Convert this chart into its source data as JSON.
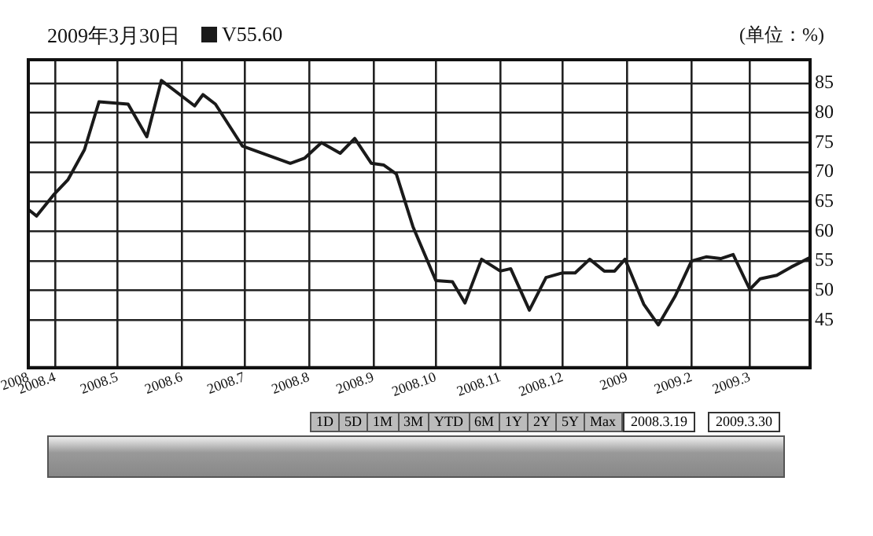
{
  "chart_data": {
    "type": "line",
    "title": "2009年3月30日",
    "ylabel": "(单位：%)",
    "legend": "top left",
    "grid": true,
    "marker": "none",
    "line_style": "solid",
    "x": [
      "2008-03-19",
      "2008-03-23",
      "2008-03-31",
      "2008-04-07",
      "2008-04-15",
      "2008-04-22",
      "2008-05-06",
      "2008-05-15",
      "2008-05-22",
      "2008-06-07",
      "2008-06-11",
      "2008-06-17",
      "2008-06-30",
      "2008-07-23",
      "2008-07-30",
      "2008-08-07",
      "2008-08-16",
      "2008-08-23",
      "2008-08-31",
      "2008-09-06",
      "2008-09-12",
      "2008-09-20",
      "2008-10-01",
      "2008-10-09",
      "2008-10-15",
      "2008-10-23",
      "2008-11-01",
      "2008-11-06",
      "2008-11-15",
      "2008-11-23",
      "2008-12-01",
      "2008-12-07",
      "2008-12-14",
      "2008-12-21",
      "2008-12-26",
      "2008-12-31",
      "2009-01-09",
      "2009-01-16",
      "2009-01-24",
      "2009-02-01",
      "2009-02-08",
      "2009-02-15",
      "2009-02-21",
      "2009-03-01",
      "2009-03-06",
      "2009-03-14",
      "2009-03-21",
      "2009-03-30"
    ],
    "series": [
      {
        "name": "V55.60",
        "color": "#1a1a1a",
        "values": [
          63.7,
          62.6,
          66.1,
          68.7,
          73.8,
          81.9,
          81.5,
          76.0,
          85.5,
          81.2,
          83.1,
          81.5,
          74.4,
          71.5,
          72.4,
          75.0,
          73.2,
          75.7,
          71.5,
          71.2,
          69.7,
          60.8,
          51.7,
          51.5,
          47.9,
          55.3,
          53.3,
          53.7,
          46.7,
          52.2,
          53.0,
          53.0,
          55.3,
          53.3,
          53.3,
          55.3,
          47.7,
          44.2,
          49.0,
          55.0,
          55.7,
          55.4,
          56.1,
          50.2,
          52.0,
          52.6,
          54.0,
          55.6
        ]
      }
    ],
    "xlim": [
      "2008-03-19",
      "2009-03-30"
    ],
    "xticks": [
      {
        "value": "2008-03-19",
        "label": "2008"
      },
      {
        "value": "2008-04-01",
        "label": "2008.4"
      },
      {
        "value": "2008-05-01",
        "label": "2008.5"
      },
      {
        "value": "2008-06-01",
        "label": "2008.6"
      },
      {
        "value": "2008-07-01",
        "label": "2008.7"
      },
      {
        "value": "2008-08-01",
        "label": "2008.8"
      },
      {
        "value": "2008-09-01",
        "label": "2008.9"
      },
      {
        "value": "2008-10-01",
        "label": "2008.10"
      },
      {
        "value": "2008-11-01",
        "label": "2008.11"
      },
      {
        "value": "2008-12-01",
        "label": "2008.12"
      },
      {
        "value": "2009-01-01",
        "label": "2009"
      },
      {
        "value": "2009-02-01",
        "label": "2009.2"
      },
      {
        "value": "2009-03-01",
        "label": "2009.3"
      }
    ],
    "ylim": [
      37,
      89
    ],
    "yticks": [
      45,
      50,
      55,
      60,
      65,
      70,
      75,
      80,
      85
    ],
    "annotations": [
      "1D",
      "5D",
      "1M",
      "3M",
      "YTD",
      "6M",
      "1Y",
      "2Y",
      "5Y",
      "Max",
      "2008.3.19",
      "2009.3.30"
    ]
  }
}
